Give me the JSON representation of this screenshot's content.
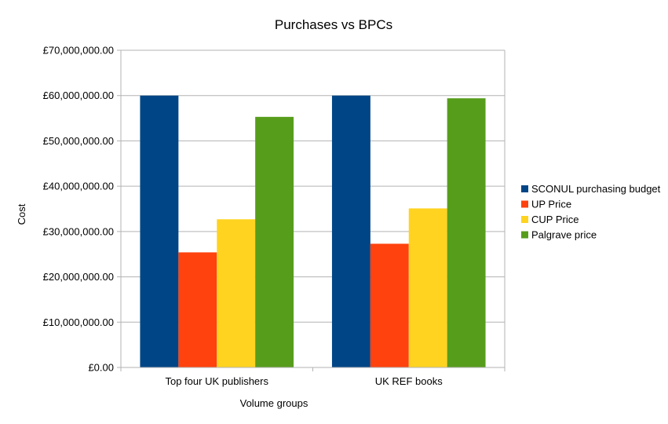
{
  "chart_data": {
    "type": "bar",
    "title": "Purchases vs BPCs",
    "xlabel": "Volume groups",
    "ylabel": "Cost",
    "categories": [
      "Top four UK publishers",
      "UK REF books"
    ],
    "series": [
      {
        "name": "SCONUL purchasing budget",
        "color": "#004586",
        "values": [
          60000000,
          60000000
        ]
      },
      {
        "name": "UP Price",
        "color": "#ff420e",
        "values": [
          25400000,
          27300000
        ]
      },
      {
        "name": "CUP Price",
        "color": "#ffd320",
        "values": [
          32700000,
          35100000
        ]
      },
      {
        "name": "Palgrave price",
        "color": "#579d1c",
        "values": [
          55300000,
          59400000
        ]
      }
    ],
    "ylim": [
      0,
      70000000
    ],
    "yticks": [
      0,
      10000000,
      20000000,
      30000000,
      40000000,
      50000000,
      60000000,
      70000000
    ],
    "ytick_labels": [
      "£0.00",
      "£10,000,000.00",
      "£20,000,000.00",
      "£30,000,000.00",
      "£40,000,000.00",
      "£50,000,000.00",
      "£60,000,000.00",
      "£70,000,000.00"
    ],
    "grid": true,
    "legend_position": "right"
  }
}
